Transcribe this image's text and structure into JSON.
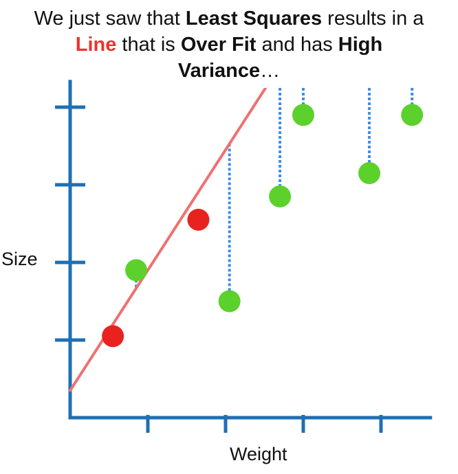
{
  "headline": {
    "line1": [
      {
        "text": "We just saw that ",
        "style": "normal"
      },
      {
        "text": "Least Squares",
        "style": "bold"
      },
      {
        "text": " results in a",
        "style": "normal"
      }
    ],
    "line2": [
      {
        "text": "Line",
        "style": "bold-red"
      },
      {
        "text": " that is ",
        "style": "normal"
      },
      {
        "text": "Over Fit",
        "style": "bold"
      },
      {
        "text": " and has ",
        "style": "normal"
      },
      {
        "text": "High",
        "style": "bold"
      }
    ],
    "line3": [
      {
        "text": "Variance",
        "style": "bold"
      },
      {
        "text": "…",
        "style": "normal"
      }
    ]
  },
  "chart_data": {
    "type": "scatter",
    "xlabel": "Weight",
    "ylabel": "Size",
    "xlim": [
      0,
      4.6
    ],
    "ylim": [
      0,
      4.4
    ],
    "x_ticks": [
      1,
      2,
      3,
      4
    ],
    "y_ticks": [
      1,
      2,
      3,
      4
    ],
    "tick_labels_shown": false,
    "colors": {
      "axis": "#1f6fb4",
      "line": "#f07070",
      "training_points": "#e8231f",
      "testing_points": "#5cd12c",
      "residuals": "#3f8fe0"
    },
    "fit_line": {
      "intercept": 0.35,
      "slope": 1.55
    },
    "series": [
      {
        "role": "training",
        "points": [
          [
            0.55,
            1.05
          ],
          [
            1.65,
            2.55
          ]
        ]
      },
      {
        "role": "testing",
        "points": [
          [
            0.85,
            1.9
          ],
          [
            2.05,
            1.5
          ],
          [
            2.7,
            2.85
          ],
          [
            3.0,
            3.9
          ],
          [
            3.85,
            3.15
          ],
          [
            4.4,
            3.9
          ]
        ]
      }
    ]
  }
}
